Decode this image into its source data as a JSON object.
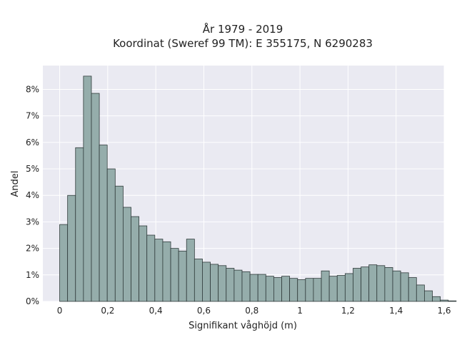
{
  "chart_data": {
    "type": "bar",
    "title_lines": [
      "År 1979 - 2019",
      "Koordinat (Sweref 99 TM): E 355175, N 6290283"
    ],
    "xlabel": "Signifikant våghöjd (m)",
    "ylabel": "Andel",
    "xlim": [
      -0.07,
      1.6
    ],
    "ylim": [
      0,
      8.9
    ],
    "x_ticks": [
      0,
      0.2,
      0.4,
      0.6,
      0.8,
      1.0,
      1.2,
      1.4,
      1.6
    ],
    "x_tick_labels": [
      "0",
      "0,2",
      "0,4",
      "0,6",
      "0,8",
      "1",
      "1,2",
      "1,4",
      "1,6"
    ],
    "y_ticks": [
      0,
      1,
      2,
      3,
      4,
      5,
      6,
      7,
      8
    ],
    "y_tick_labels": [
      "0%",
      "1%",
      "2%",
      "3%",
      "4%",
      "5%",
      "6%",
      "7%",
      "8%"
    ],
    "grid": true,
    "bin_start": 0.0,
    "bin_width": 0.033,
    "values": [
      2.9,
      4.0,
      5.8,
      8.5,
      7.85,
      5.9,
      5.0,
      4.35,
      3.55,
      3.2,
      2.85,
      2.5,
      2.35,
      2.25,
      2.0,
      1.9,
      2.35,
      1.6,
      1.48,
      1.4,
      1.35,
      1.25,
      1.18,
      1.12,
      1.02,
      1.02,
      0.95,
      0.9,
      0.95,
      0.87,
      0.82,
      0.87,
      0.87,
      1.15,
      0.95,
      0.98,
      1.05,
      1.25,
      1.3,
      1.38,
      1.35,
      1.28,
      1.15,
      1.08,
      0.9,
      0.62,
      0.4,
      0.18,
      0.05,
      0.02
    ],
    "colors": {
      "bar_fill": "#95adab",
      "bar_edge": "#2f3a3a",
      "plot_bg": "#eaeaf2",
      "grid": "#ffffff",
      "text": "#222222"
    }
  }
}
